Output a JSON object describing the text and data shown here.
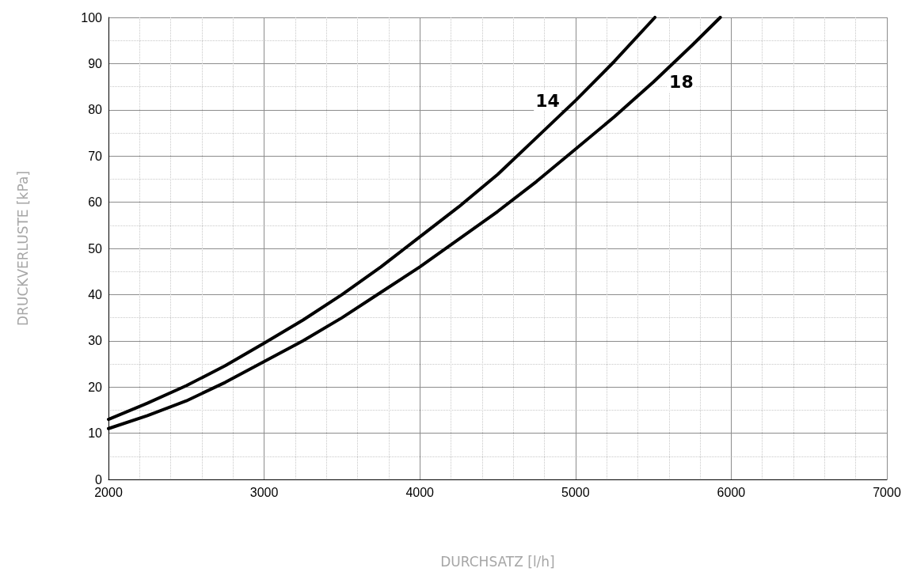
{
  "chart_data": {
    "type": "line",
    "xlabel": "DURCHSATZ [l/h]",
    "ylabel": "DRUCKVERLUSTE [kPa]",
    "xlim": [
      2000,
      7000
    ],
    "xticks": [
      2000,
      3000,
      4000,
      5000,
      6000,
      7000
    ],
    "ylim": [
      0,
      100
    ],
    "yticks": [
      0,
      10,
      20,
      30,
      40,
      50,
      60,
      70,
      80,
      90,
      100
    ],
    "grid": true,
    "marker": "none",
    "line_style": "solid",
    "series": [
      {
        "name": "14",
        "color": "#000000",
        "x": [
          2000,
          2250,
          2500,
          2750,
          3000,
          3250,
          3500,
          3750,
          4000,
          4250,
          4500,
          4750,
          5000,
          5250,
          5510
        ],
        "values": [
          13,
          16.5,
          20.3,
          24.6,
          29.5,
          34.5,
          40,
          46,
          52.5,
          59,
          66,
          74,
          82,
          90.5,
          100
        ]
      },
      {
        "name": "18",
        "color": "#000000",
        "x": [
          2000,
          2250,
          2500,
          2750,
          3000,
          3250,
          3500,
          3750,
          4000,
          4250,
          4500,
          4750,
          5000,
          5250,
          5500,
          5750,
          5930
        ],
        "values": [
          11,
          13.8,
          17,
          21,
          25.5,
          30,
          35,
          40.5,
          46,
          52,
          58,
          64.5,
          71.5,
          78.5,
          86,
          94,
          100
        ]
      }
    ]
  }
}
